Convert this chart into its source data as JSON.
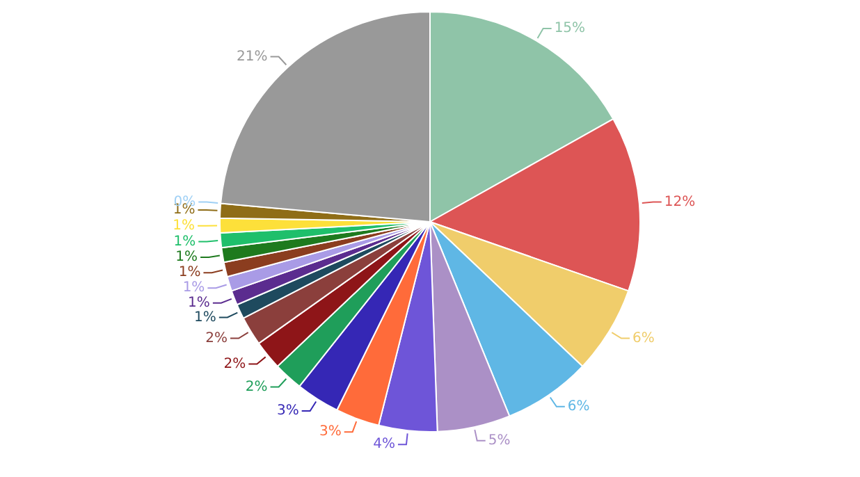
{
  "chart_data": {
    "type": "pie",
    "categories": [
      null,
      null,
      null,
      null,
      null,
      null,
      null,
      null,
      null,
      null,
      null,
      null,
      null,
      null,
      null,
      null,
      null,
      null,
      null,
      null,
      null
    ],
    "values": [
      15,
      12,
      6,
      6,
      5,
      4,
      3,
      3,
      2,
      2,
      2,
      1,
      1,
      1,
      1,
      1,
      1,
      1,
      1,
      0,
      21
    ],
    "colors": [
      "#8fc4a8",
      "#dd5555",
      "#f0cd6b",
      "#5fb7e5",
      "#ab90c6",
      "#6e55d8",
      "#ff6b3a",
      "#3527b5",
      "#1f9e5a",
      "#8e1518",
      "#8b3f3c",
      "#1e4a5e",
      "#5b2c8f",
      "#a99be6",
      "#8b3d1f",
      "#1e7a1e",
      "#1fbf6b",
      "#fde03a",
      "#8f6d17",
      "#9fd0f5",
      "#999999"
    ],
    "value_labels": [
      "15%",
      "12%",
      "6%",
      "6%",
      "5%",
      "4%",
      "3%",
      "3%",
      "2%",
      "2%",
      "2%",
      "1%",
      "1%",
      "1%",
      "1%",
      "1%",
      "1%",
      "1%",
      "1%",
      "0%",
      "21%"
    ],
    "legend": false
  }
}
